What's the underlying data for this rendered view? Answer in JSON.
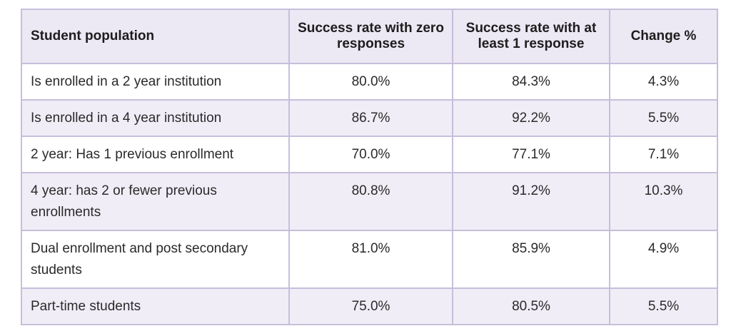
{
  "table": {
    "headers": [
      "Student population",
      "Success rate with zero responses",
      "Success rate with at least 1 response",
      "Change %"
    ],
    "rows": [
      [
        "Is enrolled in a 2 year institution",
        "80.0%",
        "84.3%",
        "4.3%"
      ],
      [
        "Is enrolled in a 4 year institution",
        "86.7%",
        "92.2%",
        "5.5%"
      ],
      [
        "2 year: Has 1 previous enrollment",
        "70.0%",
        "77.1%",
        "7.1%"
      ],
      [
        "4 year: has 2 or fewer previous enrollments",
        "80.8%",
        "91.2%",
        "10.3%"
      ],
      [
        "Dual enrollment and post secondary students",
        "81.0%",
        "85.9%",
        "4.9%"
      ],
      [
        "Part-time students",
        "75.0%",
        "80.5%",
        "5.5%"
      ]
    ]
  }
}
